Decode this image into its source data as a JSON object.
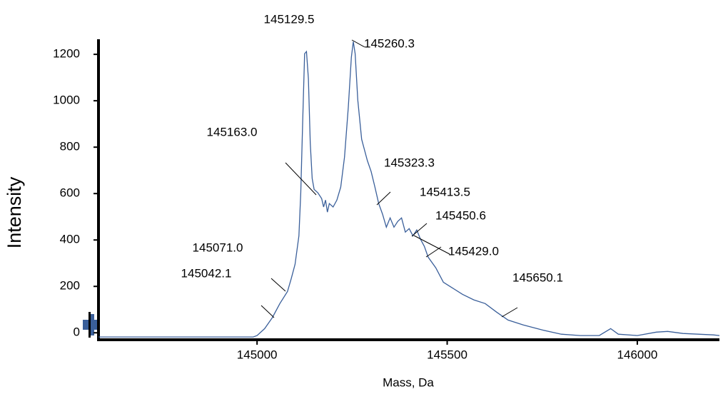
{
  "chart_data": {
    "type": "line",
    "x_label": "Mass, Da",
    "y_label": "Intensity",
    "x": [
      144583,
      144990,
      145000,
      145020,
      145040,
      145060,
      145080,
      145090,
      145100,
      145110,
      145115,
      145120,
      145125,
      145130,
      145135,
      145140,
      145145,
      145150,
      145160,
      145170,
      145175,
      145180,
      145185,
      145190,
      145200,
      145210,
      145220,
      145230,
      145240,
      145248,
      145253,
      145258,
      145265,
      145275,
      145290,
      145300,
      145310,
      145320,
      145330,
      145340,
      145350,
      145360,
      145370,
      145380,
      145390,
      145400,
      145410,
      145420,
      145430,
      145440,
      145450,
      145470,
      145490,
      145510,
      145540,
      145570,
      145600,
      145630,
      145660,
      145700,
      145750,
      145800,
      145850,
      145900,
      145930,
      145950,
      146000,
      146050,
      146080,
      146120,
      146200,
      146216
    ],
    "series": [
      {
        "color": "#3a5f9a",
        "values": [
          -18,
          -18,
          -12,
          18,
          65,
          126,
          178,
          234,
          295,
          418,
          603,
          911,
          1203,
          1212,
          1095,
          818,
          665,
          618,
          603,
          578,
          542,
          572,
          520,
          557,
          542,
          572,
          628,
          757,
          972,
          1188,
          1255,
          1203,
          1003,
          834,
          742,
          695,
          628,
          557,
          511,
          455,
          495,
          455,
          480,
          495,
          434,
          449,
          418,
          443,
          403,
          372,
          326,
          280,
          218,
          197,
          166,
          142,
          126,
          89,
          55,
          34,
          12,
          -6,
          -12,
          -12,
          18,
          -6,
          -12,
          3,
          6,
          -3,
          -9,
          -12
        ]
      }
    ],
    "xlim": [
      144583,
      146216
    ],
    "xticks": [
      145000,
      145500,
      146000
    ],
    "ylim": [
      -30,
      1265
    ],
    "yticks": [
      0,
      200,
      400,
      600,
      800,
      1000,
      1200
    ],
    "annotations": [
      {
        "text": "145129.5"
      },
      {
        "text": "145260.3"
      },
      {
        "text": "145163.0"
      },
      {
        "text": "145323.3"
      },
      {
        "text": "145413.5"
      },
      {
        "text": "145450.6"
      },
      {
        "text": "145429.0"
      },
      {
        "text": "145071.0"
      },
      {
        "text": "145042.1"
      },
      {
        "text": "145650.1"
      }
    ]
  }
}
